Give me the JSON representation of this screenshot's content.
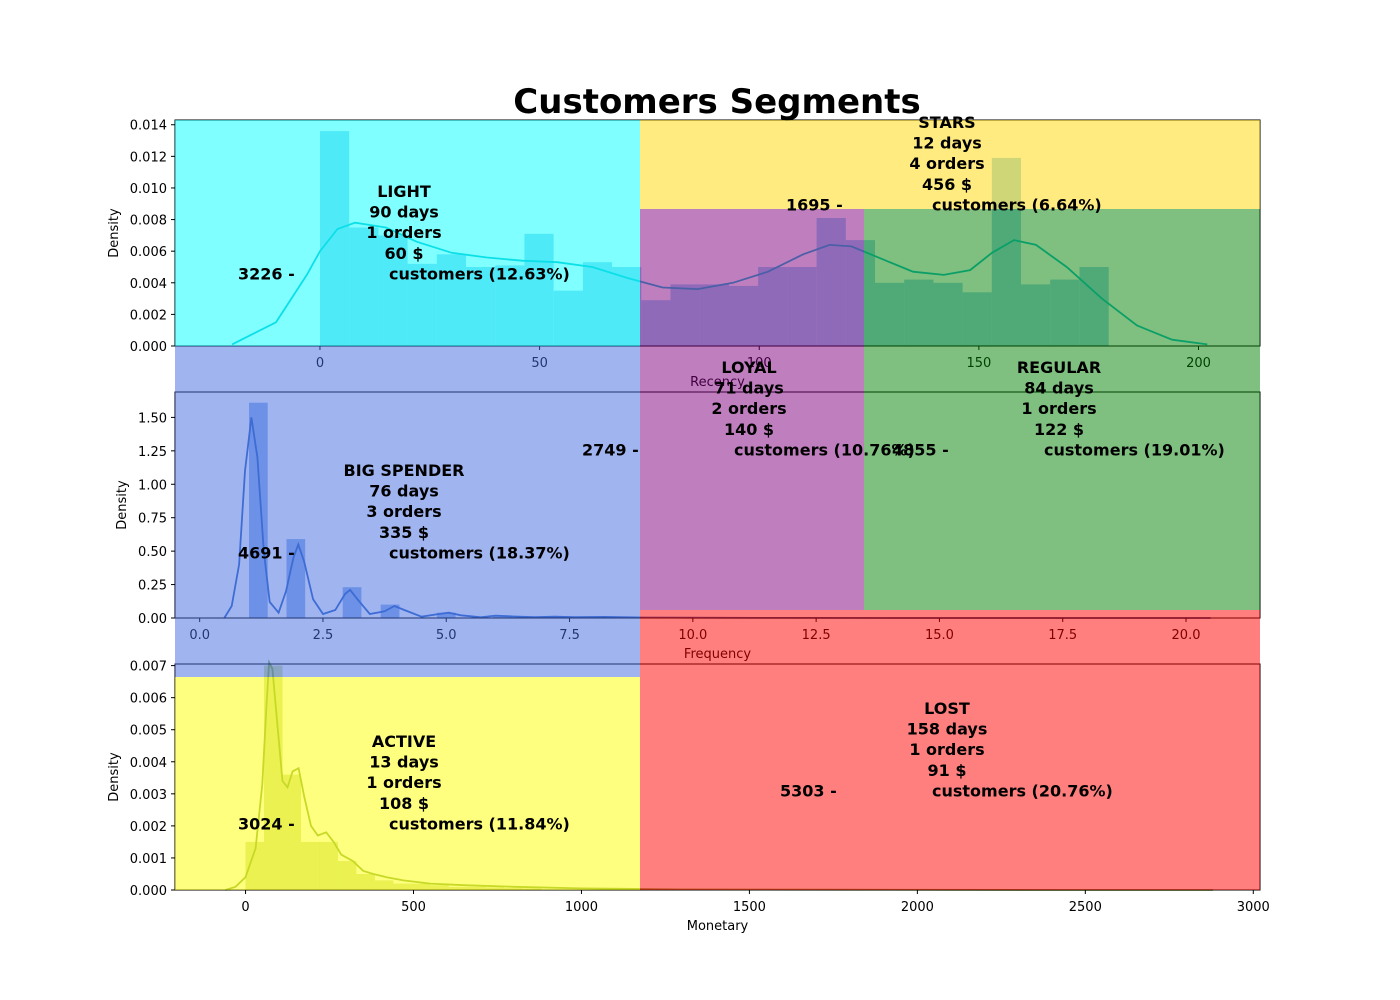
{
  "title": "Customers Segments",
  "chart_data": [
    {
      "type": "histogram",
      "panel": "recency",
      "xlabel": "Recency",
      "ylabel": "Density",
      "xlim": [
        -33,
        214
      ],
      "ylim": [
        0,
        0.0143
      ],
      "xticks": [
        0,
        50,
        100,
        150,
        200
      ],
      "yticks": [
        0,
        0.002,
        0.004,
        0.006,
        0.008,
        0.01,
        0.012,
        0.014
      ],
      "ytick_labels": [
        "0.000",
        "0.002",
        "0.004",
        "0.006",
        "0.008",
        "0.010",
        "0.012",
        "0.014"
      ],
      "bar_color": "#4fb3e6",
      "kde_color": "#17becf",
      "bins": [
        {
          "x0": 0,
          "x1": 6.65,
          "density": 0.0136
        },
        {
          "x0": 6.65,
          "x1": 13.3,
          "density": 0.0075
        },
        {
          "x0": 13.3,
          "x1": 19.95,
          "density": 0.007
        },
        {
          "x0": 19.95,
          "x1": 26.6,
          "density": 0.0052
        },
        {
          "x0": 26.6,
          "x1": 33.25,
          "density": 0.0058
        },
        {
          "x0": 33.25,
          "x1": 39.9,
          "density": 0.005
        },
        {
          "x0": 39.9,
          "x1": 46.55,
          "density": 0.0051
        },
        {
          "x0": 46.55,
          "x1": 53.2,
          "density": 0.0071
        },
        {
          "x0": 53.2,
          "x1": 59.85,
          "density": 0.0035
        },
        {
          "x0": 59.85,
          "x1": 66.5,
          "density": 0.0053
        },
        {
          "x0": 66.5,
          "x1": 73.15,
          "density": 0.005
        },
        {
          "x0": 73.15,
          "x1": 79.8,
          "density": 0.0029
        },
        {
          "x0": 79.8,
          "x1": 86.45,
          "density": 0.0039
        },
        {
          "x0": 86.45,
          "x1": 93.1,
          "density": 0.0039
        },
        {
          "x0": 93.1,
          "x1": 99.75,
          "density": 0.0038
        },
        {
          "x0": 99.75,
          "x1": 106.4,
          "density": 0.005
        },
        {
          "x0": 106.4,
          "x1": 113.05,
          "density": 0.005
        },
        {
          "x0": 113.05,
          "x1": 119.7,
          "density": 0.0081
        },
        {
          "x0": 119.7,
          "x1": 126.35,
          "density": 0.0067
        },
        {
          "x0": 126.35,
          "x1": 133.0,
          "density": 0.004
        },
        {
          "x0": 133.0,
          "x1": 139.65,
          "density": 0.0042
        },
        {
          "x0": 139.65,
          "x1": 146.3,
          "density": 0.004
        },
        {
          "x0": 146.3,
          "x1": 152.95,
          "density": 0.0034
        },
        {
          "x0": 152.95,
          "x1": 159.6,
          "density": 0.0119
        },
        {
          "x0": 159.6,
          "x1": 166.25,
          "density": 0.0039
        },
        {
          "x0": 166.25,
          "x1": 172.9,
          "density": 0.0042
        },
        {
          "x0": 172.9,
          "x1": 179.55,
          "density": 0.005
        }
      ],
      "kde": [
        [
          -20,
          0.0001
        ],
        [
          -10,
          0.0015
        ],
        [
          -3,
          0.0045
        ],
        [
          0,
          0.006
        ],
        [
          4,
          0.0074
        ],
        [
          8,
          0.0078
        ],
        [
          15,
          0.0075
        ],
        [
          22,
          0.0066
        ],
        [
          30,
          0.0059
        ],
        [
          38,
          0.0056
        ],
        [
          46,
          0.0054
        ],
        [
          54,
          0.0053
        ],
        [
          62,
          0.005
        ],
        [
          70,
          0.0043
        ],
        [
          78,
          0.0037
        ],
        [
          86,
          0.0036
        ],
        [
          94,
          0.004
        ],
        [
          102,
          0.0047
        ],
        [
          110,
          0.0058
        ],
        [
          116,
          0.0064
        ],
        [
          121,
          0.0063
        ],
        [
          128,
          0.0055
        ],
        [
          135,
          0.0047
        ],
        [
          142,
          0.0045
        ],
        [
          148,
          0.0048
        ],
        [
          153,
          0.0059
        ],
        [
          158,
          0.0067
        ],
        [
          163,
          0.0064
        ],
        [
          170,
          0.005
        ],
        [
          178,
          0.003
        ],
        [
          186,
          0.0013
        ],
        [
          194,
          0.0004
        ],
        [
          202,
          0.0001
        ]
      ]
    },
    {
      "type": "histogram",
      "panel": "frequency",
      "xlabel": "Frequency",
      "ylabel": "Density",
      "xlim": [
        -0.5,
        21.5
      ],
      "ylim": [
        0,
        1.69
      ],
      "xticks": [
        0,
        2.5,
        5,
        7.5,
        10,
        12.5,
        15,
        17.5,
        20
      ],
      "xtick_labels": [
        "0.0",
        "2.5",
        "5.0",
        "7.5",
        "10.0",
        "12.5",
        "15.0",
        "17.5",
        "20.0"
      ],
      "yticks": [
        0,
        0.25,
        0.5,
        0.75,
        1.0,
        1.25,
        1.5
      ],
      "ytick_labels": [
        "0.00",
        "0.25",
        "0.50",
        "0.75",
        "1.00",
        "1.25",
        "1.50"
      ],
      "bar_color": "#3f7fd9",
      "kde_color": "#3a6fc8",
      "bins": [
        {
          "x0": 1.0,
          "x1": 1.38,
          "density": 1.61
        },
        {
          "x0": 1.76,
          "x1": 2.14,
          "density": 0.59
        },
        {
          "x0": 2.9,
          "x1": 3.28,
          "density": 0.23
        },
        {
          "x0": 3.67,
          "x1": 4.05,
          "density": 0.1
        },
        {
          "x0": 4.81,
          "x1": 5.19,
          "density": 0.04
        },
        {
          "x0": 5.95,
          "x1": 6.33,
          "density": 0.02
        }
      ],
      "kde": [
        [
          0.5,
          0.0
        ],
        [
          0.65,
          0.09
        ],
        [
          0.8,
          0.4
        ],
        [
          0.92,
          1.1
        ],
        [
          1.05,
          1.5
        ],
        [
          1.17,
          1.2
        ],
        [
          1.3,
          0.5
        ],
        [
          1.42,
          0.12
        ],
        [
          1.6,
          0.04
        ],
        [
          1.75,
          0.2
        ],
        [
          1.9,
          0.45
        ],
        [
          2.0,
          0.55
        ],
        [
          2.12,
          0.42
        ],
        [
          2.3,
          0.14
        ],
        [
          2.5,
          0.03
        ],
        [
          2.75,
          0.06
        ],
        [
          2.95,
          0.18
        ],
        [
          3.05,
          0.21
        ],
        [
          3.2,
          0.14
        ],
        [
          3.45,
          0.03
        ],
        [
          3.75,
          0.05
        ],
        [
          3.95,
          0.09
        ],
        [
          4.15,
          0.06
        ],
        [
          4.5,
          0.01
        ],
        [
          4.85,
          0.03
        ],
        [
          5.05,
          0.04
        ],
        [
          5.3,
          0.02
        ],
        [
          5.7,
          0.005
        ],
        [
          6.0,
          0.018
        ],
        [
          6.3,
          0.012
        ],
        [
          6.8,
          0.006
        ],
        [
          7.2,
          0.01
        ],
        [
          7.6,
          0.006
        ],
        [
          8.2,
          0.008
        ],
        [
          9.0,
          0.004
        ],
        [
          10.0,
          0.002
        ],
        [
          12.0,
          0.001
        ],
        [
          15.0,
          0.0
        ],
        [
          18.0,
          0.0
        ],
        [
          20.5,
          0.0
        ]
      ]
    },
    {
      "type": "histogram",
      "panel": "monetary",
      "xlabel": "Monetary",
      "ylabel": "Density",
      "xlim": [
        -210,
        3020
      ],
      "ylim": [
        0,
        0.00705
      ],
      "xticks": [
        0,
        500,
        1000,
        1500,
        2000,
        2500,
        3000
      ],
      "yticks": [
        0,
        0.001,
        0.002,
        0.003,
        0.004,
        0.005,
        0.006,
        0.007
      ],
      "ytick_labels": [
        "0.000",
        "0.001",
        "0.002",
        "0.003",
        "0.004",
        "0.005",
        "0.006",
        "0.007"
      ],
      "bar_color": "#b3cc55",
      "kde_color": "#8fb24f",
      "bins": [
        {
          "x0": 0,
          "x1": 55,
          "density": 0.0015
        },
        {
          "x0": 55,
          "x1": 110,
          "density": 0.007
        },
        {
          "x0": 110,
          "x1": 165,
          "density": 0.0036
        },
        {
          "x0": 165,
          "x1": 220,
          "density": 0.0015
        },
        {
          "x0": 220,
          "x1": 275,
          "density": 0.0015
        },
        {
          "x0": 275,
          "x1": 330,
          "density": 0.0009
        },
        {
          "x0": 330,
          "x1": 385,
          "density": 0.0005
        },
        {
          "x0": 385,
          "x1": 440,
          "density": 0.0003
        },
        {
          "x0": 440,
          "x1": 495,
          "density": 0.0002
        },
        {
          "x0": 495,
          "x1": 550,
          "density": 0.0002
        },
        {
          "x0": 550,
          "x1": 605,
          "density": 0.00015
        },
        {
          "x0": 605,
          "x1": 660,
          "density": 0.0001
        },
        {
          "x0": 660,
          "x1": 715,
          "density": 0.0001
        },
        {
          "x0": 715,
          "x1": 770,
          "density": 8e-05
        },
        {
          "x0": 770,
          "x1": 825,
          "density": 6e-05
        },
        {
          "x0": 825,
          "x1": 880,
          "density": 5e-05
        }
      ],
      "kde": [
        [
          -60,
          0.0
        ],
        [
          -30,
          0.0001
        ],
        [
          0,
          0.0004
        ],
        [
          30,
          0.0013
        ],
        [
          50,
          0.0033
        ],
        [
          62,
          0.0057
        ],
        [
          70,
          0.0071
        ],
        [
          80,
          0.0069
        ],
        [
          92,
          0.0055
        ],
        [
          110,
          0.0034
        ],
        [
          125,
          0.0032
        ],
        [
          140,
          0.0037
        ],
        [
          158,
          0.0038
        ],
        [
          175,
          0.0029
        ],
        [
          195,
          0.002
        ],
        [
          215,
          0.0017
        ],
        [
          240,
          0.0018
        ],
        [
          262,
          0.0015
        ],
        [
          285,
          0.0011
        ],
        [
          320,
          0.0009
        ],
        [
          350,
          0.0006
        ],
        [
          380,
          0.0005
        ],
        [
          420,
          0.0004
        ],
        [
          470,
          0.0003
        ],
        [
          550,
          0.0002
        ],
        [
          650,
          0.00015
        ],
        [
          800,
          0.0001
        ],
        [
          1000,
          5e-05
        ],
        [
          1300,
          2e-05
        ],
        [
          1800,
          1e-05
        ],
        [
          2400,
          0.0
        ],
        [
          2880,
          0.0
        ]
      ]
    }
  ],
  "segments": [
    {
      "name": "LIGHT",
      "days": "90 days",
      "orders": "1 orders",
      "money": "60 $",
      "count": "3226 -",
      "share": "customers (12.63%)",
      "color": "#00ffff",
      "opacity": 0.5
    },
    {
      "name": "STARS",
      "days": "12 days",
      "orders": "4 orders",
      "money": "456 $",
      "count": "1695 -",
      "share": "customers (6.64%)",
      "color": "#ffd700",
      "opacity": 0.5
    },
    {
      "name": "LOYAL",
      "days": "71 days",
      "orders": "2 orders",
      "money": "140 $",
      "count": "2749 -",
      "share": "customers (10.76%)",
      "color": "#800080",
      "opacity": 0.5
    },
    {
      "name": "REGULAR",
      "days": "84 days",
      "orders": "1 orders",
      "money": "122 $",
      "count": "4855 -",
      "share": "customers (19.01%)",
      "color": "#008000",
      "opacity": 0.5
    },
    {
      "name": "BIG SPENDER",
      "days": "76 days",
      "orders": "3 orders",
      "money": "335 $",
      "count": "4691 -",
      "share": "customers (18.37%)",
      "color": "#4169e1",
      "opacity": 0.5
    },
    {
      "name": "ACTIVE",
      "days": "13 days",
      "orders": "1 orders",
      "money": "108 $",
      "count": "3024 -",
      "share": "customers (11.84%)",
      "color": "#ffff00",
      "opacity": 0.5
    },
    {
      "name": "LOST",
      "days": "158 days",
      "orders": "1 orders",
      "money": "91 $",
      "count": "5303 -",
      "share": "customers (20.76%)",
      "color": "#ff0000",
      "opacity": 0.5
    }
  ]
}
